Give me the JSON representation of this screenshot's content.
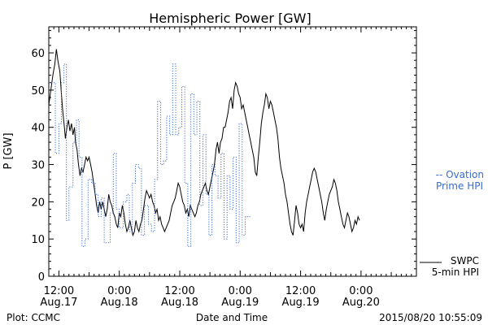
{
  "chart_data": {
    "type": "line",
    "title": "Hemispheric Power [GW]",
    "ylabel": "P [GW]",
    "xlabel": "Date and Time",
    "ylim": [
      0,
      67
    ],
    "y_ticks": [
      0,
      10,
      20,
      30,
      40,
      50,
      60
    ],
    "x_ticks": [
      {
        "hour": 0,
        "time": "12:00",
        "date": "Aug.17"
      },
      {
        "hour": 12,
        "time": "0:00",
        "date": "Aug.18"
      },
      {
        "hour": 24,
        "time": "12:00",
        "date": "Aug.18"
      },
      {
        "hour": 36,
        "time": "0:00",
        "date": "Aug.19"
      },
      {
        "hour": 48,
        "time": "12:00",
        "date": "Aug.19"
      },
      {
        "hour": 60,
        "time": "0:00",
        "date": "Aug.20"
      }
    ],
    "xlim_hours": [
      -2,
      71
    ],
    "legend": {
      "ovation": [
        "-- Ovation",
        "Prime HPI"
      ],
      "swpc": [
        "SWPC",
        "5-min HPI"
      ]
    },
    "footer_left": "Plot: CCMC",
    "footer_right": "2015/08/20 10:55:09",
    "series": [
      {
        "name": "SWPC 5-min HPI",
        "color": "#000000",
        "style": "solid",
        "points": [
          [
            -2.0,
            46
          ],
          [
            -1.6,
            50
          ],
          [
            -1.2,
            54
          ],
          [
            -0.8,
            57
          ],
          [
            -0.5,
            61
          ],
          [
            -0.2,
            58
          ],
          [
            0.2,
            55
          ],
          [
            0.5,
            49
          ],
          [
            0.8,
            44
          ],
          [
            1.1,
            40
          ],
          [
            1.3,
            37
          ],
          [
            1.6,
            40
          ],
          [
            1.9,
            42
          ],
          [
            2.2,
            39
          ],
          [
            2.5,
            41
          ],
          [
            2.8,
            38
          ],
          [
            3.1,
            40
          ],
          [
            3.3,
            36
          ],
          [
            3.6,
            34
          ],
          [
            3.9,
            30
          ],
          [
            4.2,
            27
          ],
          [
            4.5,
            29
          ],
          [
            4.8,
            28
          ],
          [
            5.1,
            30
          ],
          [
            5.4,
            32
          ],
          [
            5.7,
            31
          ],
          [
            6.0,
            32
          ],
          [
            6.3,
            30
          ],
          [
            6.6,
            28
          ],
          [
            6.9,
            25
          ],
          [
            7.2,
            22
          ],
          [
            7.5,
            19
          ],
          [
            7.8,
            17
          ],
          [
            8.1,
            20
          ],
          [
            8.4,
            18
          ],
          [
            8.7,
            20
          ],
          [
            9.0,
            18
          ],
          [
            9.3,
            16
          ],
          [
            9.6,
            18
          ],
          [
            9.9,
            22
          ],
          [
            10.2,
            20
          ],
          [
            10.5,
            19
          ],
          [
            10.8,
            17
          ],
          [
            11.1,
            16
          ],
          [
            11.4,
            14
          ],
          [
            11.7,
            13
          ],
          [
            12.0,
            17
          ],
          [
            12.3,
            16
          ],
          [
            12.6,
            19
          ],
          [
            12.9,
            17
          ],
          [
            13.2,
            14
          ],
          [
            13.5,
            12
          ],
          [
            13.8,
            13
          ],
          [
            14.1,
            15
          ],
          [
            14.4,
            13
          ],
          [
            14.7,
            11
          ],
          [
            15.0,
            12
          ],
          [
            15.3,
            15
          ],
          [
            15.6,
            13
          ],
          [
            15.9,
            12
          ],
          [
            16.2,
            14
          ],
          [
            16.5,
            15
          ],
          [
            16.8,
            18
          ],
          [
            17.1,
            21
          ],
          [
            17.4,
            23
          ],
          [
            17.7,
            22
          ],
          [
            18.0,
            21
          ],
          [
            18.3,
            22
          ],
          [
            18.6,
            20
          ],
          [
            18.9,
            19
          ],
          [
            19.2,
            17
          ],
          [
            19.5,
            18
          ],
          [
            19.8,
            15
          ],
          [
            20.1,
            16
          ],
          [
            20.4,
            14
          ],
          [
            20.7,
            13
          ],
          [
            21.0,
            12
          ],
          [
            21.3,
            13
          ],
          [
            21.6,
            14
          ],
          [
            21.9,
            15
          ],
          [
            22.2,
            17
          ],
          [
            22.5,
            19
          ],
          [
            22.8,
            20
          ],
          [
            23.1,
            21
          ],
          [
            23.4,
            23
          ],
          [
            23.7,
            25
          ],
          [
            24.0,
            24
          ],
          [
            24.3,
            22
          ],
          [
            24.6,
            20
          ],
          [
            24.9,
            19
          ],
          [
            25.2,
            17
          ],
          [
            25.5,
            18
          ],
          [
            25.8,
            16
          ],
          [
            26.1,
            19
          ],
          [
            26.4,
            18
          ],
          [
            26.7,
            17
          ],
          [
            27.0,
            16
          ],
          [
            27.3,
            17
          ],
          [
            27.6,
            19
          ],
          [
            27.9,
            20
          ],
          [
            28.2,
            22
          ],
          [
            28.5,
            23
          ],
          [
            28.8,
            24
          ],
          [
            29.1,
            25
          ],
          [
            29.4,
            23
          ],
          [
            29.7,
            22
          ],
          [
            30.0,
            24
          ],
          [
            30.3,
            26
          ],
          [
            30.6,
            28
          ],
          [
            30.9,
            30
          ],
          [
            31.2,
            34
          ],
          [
            31.5,
            36
          ],
          [
            31.8,
            33
          ],
          [
            32.1,
            36
          ],
          [
            32.4,
            37
          ],
          [
            32.7,
            40
          ],
          [
            33.0,
            40
          ],
          [
            33.3,
            42
          ],
          [
            33.6,
            44
          ],
          [
            33.9,
            47
          ],
          [
            34.2,
            48
          ],
          [
            34.5,
            45
          ],
          [
            34.8,
            50
          ],
          [
            35.1,
            52
          ],
          [
            35.4,
            51
          ],
          [
            35.7,
            49
          ],
          [
            36.0,
            48
          ],
          [
            36.3,
            45
          ],
          [
            36.6,
            46
          ],
          [
            36.9,
            44
          ],
          [
            37.2,
            42
          ],
          [
            37.5,
            40
          ],
          [
            37.8,
            38
          ],
          [
            38.1,
            36
          ],
          [
            38.4,
            34
          ],
          [
            38.7,
            32
          ],
          [
            39.0,
            28
          ],
          [
            39.3,
            27
          ],
          [
            39.6,
            32
          ],
          [
            39.9,
            36
          ],
          [
            40.2,
            41
          ],
          [
            40.5,
            44
          ],
          [
            40.8,
            46
          ],
          [
            41.1,
            49
          ],
          [
            41.4,
            48
          ],
          [
            41.7,
            45
          ],
          [
            42.0,
            47
          ],
          [
            42.3,
            46
          ],
          [
            42.6,
            44
          ],
          [
            42.9,
            42
          ],
          [
            43.2,
            40
          ],
          [
            43.5,
            37
          ],
          [
            43.8,
            32
          ],
          [
            44.1,
            29
          ],
          [
            44.4,
            27
          ],
          [
            44.7,
            25
          ],
          [
            45.0,
            22
          ],
          [
            45.3,
            20
          ],
          [
            45.6,
            17
          ],
          [
            45.9,
            14
          ],
          [
            46.2,
            12
          ],
          [
            46.5,
            11
          ],
          [
            46.8,
            15
          ],
          [
            47.1,
            19
          ],
          [
            47.4,
            17
          ],
          [
            47.7,
            14
          ],
          [
            48.0,
            13
          ],
          [
            48.3,
            14
          ],
          [
            48.6,
            12
          ],
          [
            48.9,
            17
          ],
          [
            49.2,
            20
          ],
          [
            49.5,
            22
          ],
          [
            49.8,
            24
          ],
          [
            50.1,
            26
          ],
          [
            50.4,
            28
          ],
          [
            50.7,
            29
          ],
          [
            51.0,
            28
          ],
          [
            51.3,
            26
          ],
          [
            51.6,
            24
          ],
          [
            51.9,
            22
          ],
          [
            52.2,
            20
          ],
          [
            52.5,
            17
          ],
          [
            52.8,
            15
          ],
          [
            53.1,
            18
          ],
          [
            53.4,
            20
          ],
          [
            53.7,
            22
          ],
          [
            54.0,
            23
          ],
          [
            54.3,
            24
          ],
          [
            54.6,
            26
          ],
          [
            54.9,
            25
          ],
          [
            55.2,
            23
          ],
          [
            55.5,
            20
          ],
          [
            55.8,
            18
          ],
          [
            56.1,
            16
          ],
          [
            56.4,
            14
          ],
          [
            56.7,
            13
          ],
          [
            57.0,
            15
          ],
          [
            57.3,
            17
          ],
          [
            57.6,
            16
          ],
          [
            57.9,
            14
          ],
          [
            58.2,
            12
          ],
          [
            58.5,
            13
          ],
          [
            58.8,
            15
          ],
          [
            59.1,
            14
          ],
          [
            59.4,
            16
          ],
          [
            59.7,
            15
          ]
        ]
      },
      {
        "name": "Ovation Prime HPI",
        "color": "#3a6bd1",
        "style": "dotted-step",
        "points": [
          [
            -2.0,
            52
          ],
          [
            -0.7,
            33
          ],
          [
            0.0,
            41
          ],
          [
            0.5,
            52
          ],
          [
            1.0,
            57
          ],
          [
            1.5,
            15
          ],
          [
            2.0,
            24
          ],
          [
            2.8,
            36
          ],
          [
            3.5,
            42
          ],
          [
            4.0,
            32
          ],
          [
            4.6,
            8
          ],
          [
            5.2,
            10
          ],
          [
            5.8,
            26
          ],
          [
            6.5,
            25
          ],
          [
            7.2,
            22
          ],
          [
            7.8,
            16
          ],
          [
            8.4,
            21
          ],
          [
            9.0,
            9
          ],
          [
            9.6,
            9
          ],
          [
            10.2,
            17
          ],
          [
            10.8,
            33
          ],
          [
            11.4,
            18
          ],
          [
            12.0,
            13
          ],
          [
            12.8,
            20
          ],
          [
            13.5,
            22
          ],
          [
            14.0,
            12
          ],
          [
            14.6,
            25
          ],
          [
            15.2,
            30
          ],
          [
            15.8,
            29
          ],
          [
            16.4,
            11
          ],
          [
            17.0,
            19
          ],
          [
            17.8,
            14
          ],
          [
            18.4,
            12
          ],
          [
            19.0,
            26
          ],
          [
            19.6,
            47
          ],
          [
            20.2,
            30
          ],
          [
            20.8,
            31
          ],
          [
            21.4,
            43
          ],
          [
            22.0,
            38
          ],
          [
            22.6,
            57
          ],
          [
            23.2,
            38
          ],
          [
            23.8,
            40
          ],
          [
            24.4,
            51
          ],
          [
            25.0,
            25
          ],
          [
            25.6,
            8
          ],
          [
            26.2,
            49
          ],
          [
            26.8,
            38
          ],
          [
            27.4,
            47
          ],
          [
            28.0,
            19
          ],
          [
            28.6,
            38
          ],
          [
            29.2,
            22
          ],
          [
            29.8,
            11
          ],
          [
            30.4,
            30
          ],
          [
            31.0,
            27
          ],
          [
            31.6,
            21
          ],
          [
            32.2,
            33
          ],
          [
            32.8,
            10
          ],
          [
            33.4,
            27
          ],
          [
            34.0,
            18
          ],
          [
            34.6,
            32
          ],
          [
            35.2,
            9
          ],
          [
            35.8,
            41
          ],
          [
            36.4,
            11
          ],
          [
            37.0,
            16
          ]
        ]
      }
    ]
  }
}
